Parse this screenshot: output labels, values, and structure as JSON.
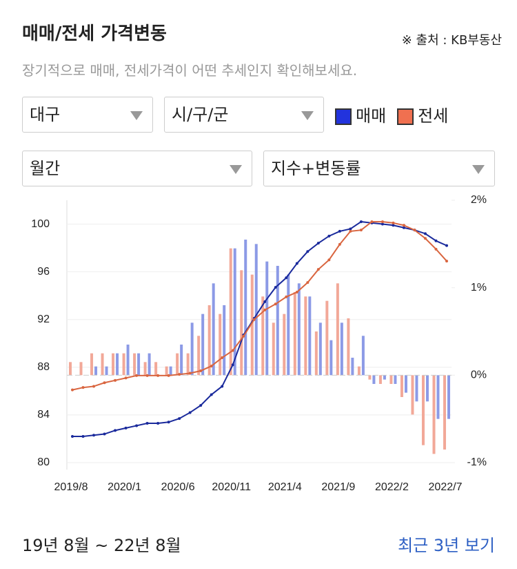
{
  "header": {
    "title": "매매/전세 가격변동",
    "source": "※ 출처 : KB부동산",
    "subtitle": "장기적으로 매매, 전세가격이 어떤 추세인지 확인해보세요."
  },
  "filters": [
    "대구",
    "시/구/군",
    "월간",
    "지수+변동률"
  ],
  "chart_data": {
    "type": "bar-line",
    "categories": [
      "2019/8",
      null,
      null,
      null,
      null,
      "2020/1",
      null,
      null,
      null,
      null,
      "2020/6",
      null,
      null,
      null,
      null,
      "2020/11",
      null,
      null,
      null,
      null,
      "2021/4",
      null,
      null,
      null,
      null,
      "2021/9",
      null,
      null,
      null,
      null,
      "2022/2",
      null,
      null,
      null,
      null,
      "2022/7"
    ],
    "series": [
      {
        "name": "매매",
        "color": "#1a2a9c",
        "legend_color": "#2233dd",
        "bar_color": "#8c9ae6",
        "values": [
          82.2,
          82.2,
          82.3,
          82.4,
          82.7,
          82.9,
          83.1,
          83.3,
          83.3,
          83.4,
          83.7,
          84.2,
          84.8,
          85.7,
          86.4,
          88.2,
          90.7,
          92.1,
          93.5,
          94.7,
          95.5,
          96.7,
          97.7,
          98.4,
          99.0,
          99.4,
          99.6,
          100.2,
          100.1,
          100.0,
          99.9,
          99.7,
          99.5,
          99.2,
          98.6,
          98.2
        ],
        "y2_values": [
          0,
          0,
          0.1,
          0.1,
          0.25,
          0.35,
          0.25,
          0.25,
          0,
          0.1,
          0.35,
          0.6,
          0.7,
          1.05,
          0.8,
          1.45,
          1.55,
          1.5,
          1.3,
          1.25,
          1.15,
          1.05,
          0.9,
          0.6,
          0.4,
          0.6,
          0.2,
          0.45,
          -0.1,
          -0.05,
          -0.1,
          -0.2,
          -0.3,
          -0.3,
          -0.5,
          -0.5
        ]
      },
      {
        "name": "전세",
        "color": "#d9653f",
        "legend_color": "#f07050",
        "bar_color": "#f2a898",
        "values": [
          86.1,
          86.3,
          86.4,
          86.7,
          86.9,
          87.1,
          87.3,
          87.3,
          87.3,
          87.3,
          87.4,
          87.5,
          87.7,
          88.1,
          88.8,
          89.4,
          90.6,
          92.0,
          92.8,
          93.3,
          93.9,
          94.3,
          95.1,
          96.2,
          97.0,
          98.3,
          99.4,
          99.5,
          100.2,
          100.2,
          100.1,
          99.9,
          99.5,
          98.8,
          97.9,
          96.9
        ],
        "y2_values": [
          0.15,
          0.15,
          0.25,
          0.25,
          0.25,
          0.25,
          0.25,
          0.15,
          0.15,
          0.1,
          0.25,
          0.25,
          0.45,
          0.8,
          0.7,
          1.45,
          1.2,
          1.15,
          0.9,
          0.6,
          0.7,
          0.95,
          0.9,
          0.5,
          0.85,
          1.05,
          0.65,
          0.1,
          -0.05,
          -0.1,
          -0.1,
          -0.25,
          -0.45,
          -0.8,
          -0.9,
          -0.85
        ]
      }
    ],
    "ylim": [
      80,
      102
    ],
    "yticks": [
      80,
      84,
      88,
      92,
      96,
      100
    ],
    "y2lim": [
      -1,
      2
    ],
    "y2ticks": [
      {
        "value": -1,
        "label": "-1%"
      },
      {
        "value": 0,
        "label": "0%"
      },
      {
        "value": 1,
        "label": "1%"
      },
      {
        "value": 2,
        "label": "2%"
      }
    ],
    "grid": true
  },
  "footer": {
    "range": "19년 8월 ~ 22년 8월",
    "link": "최근 3년 보기"
  }
}
